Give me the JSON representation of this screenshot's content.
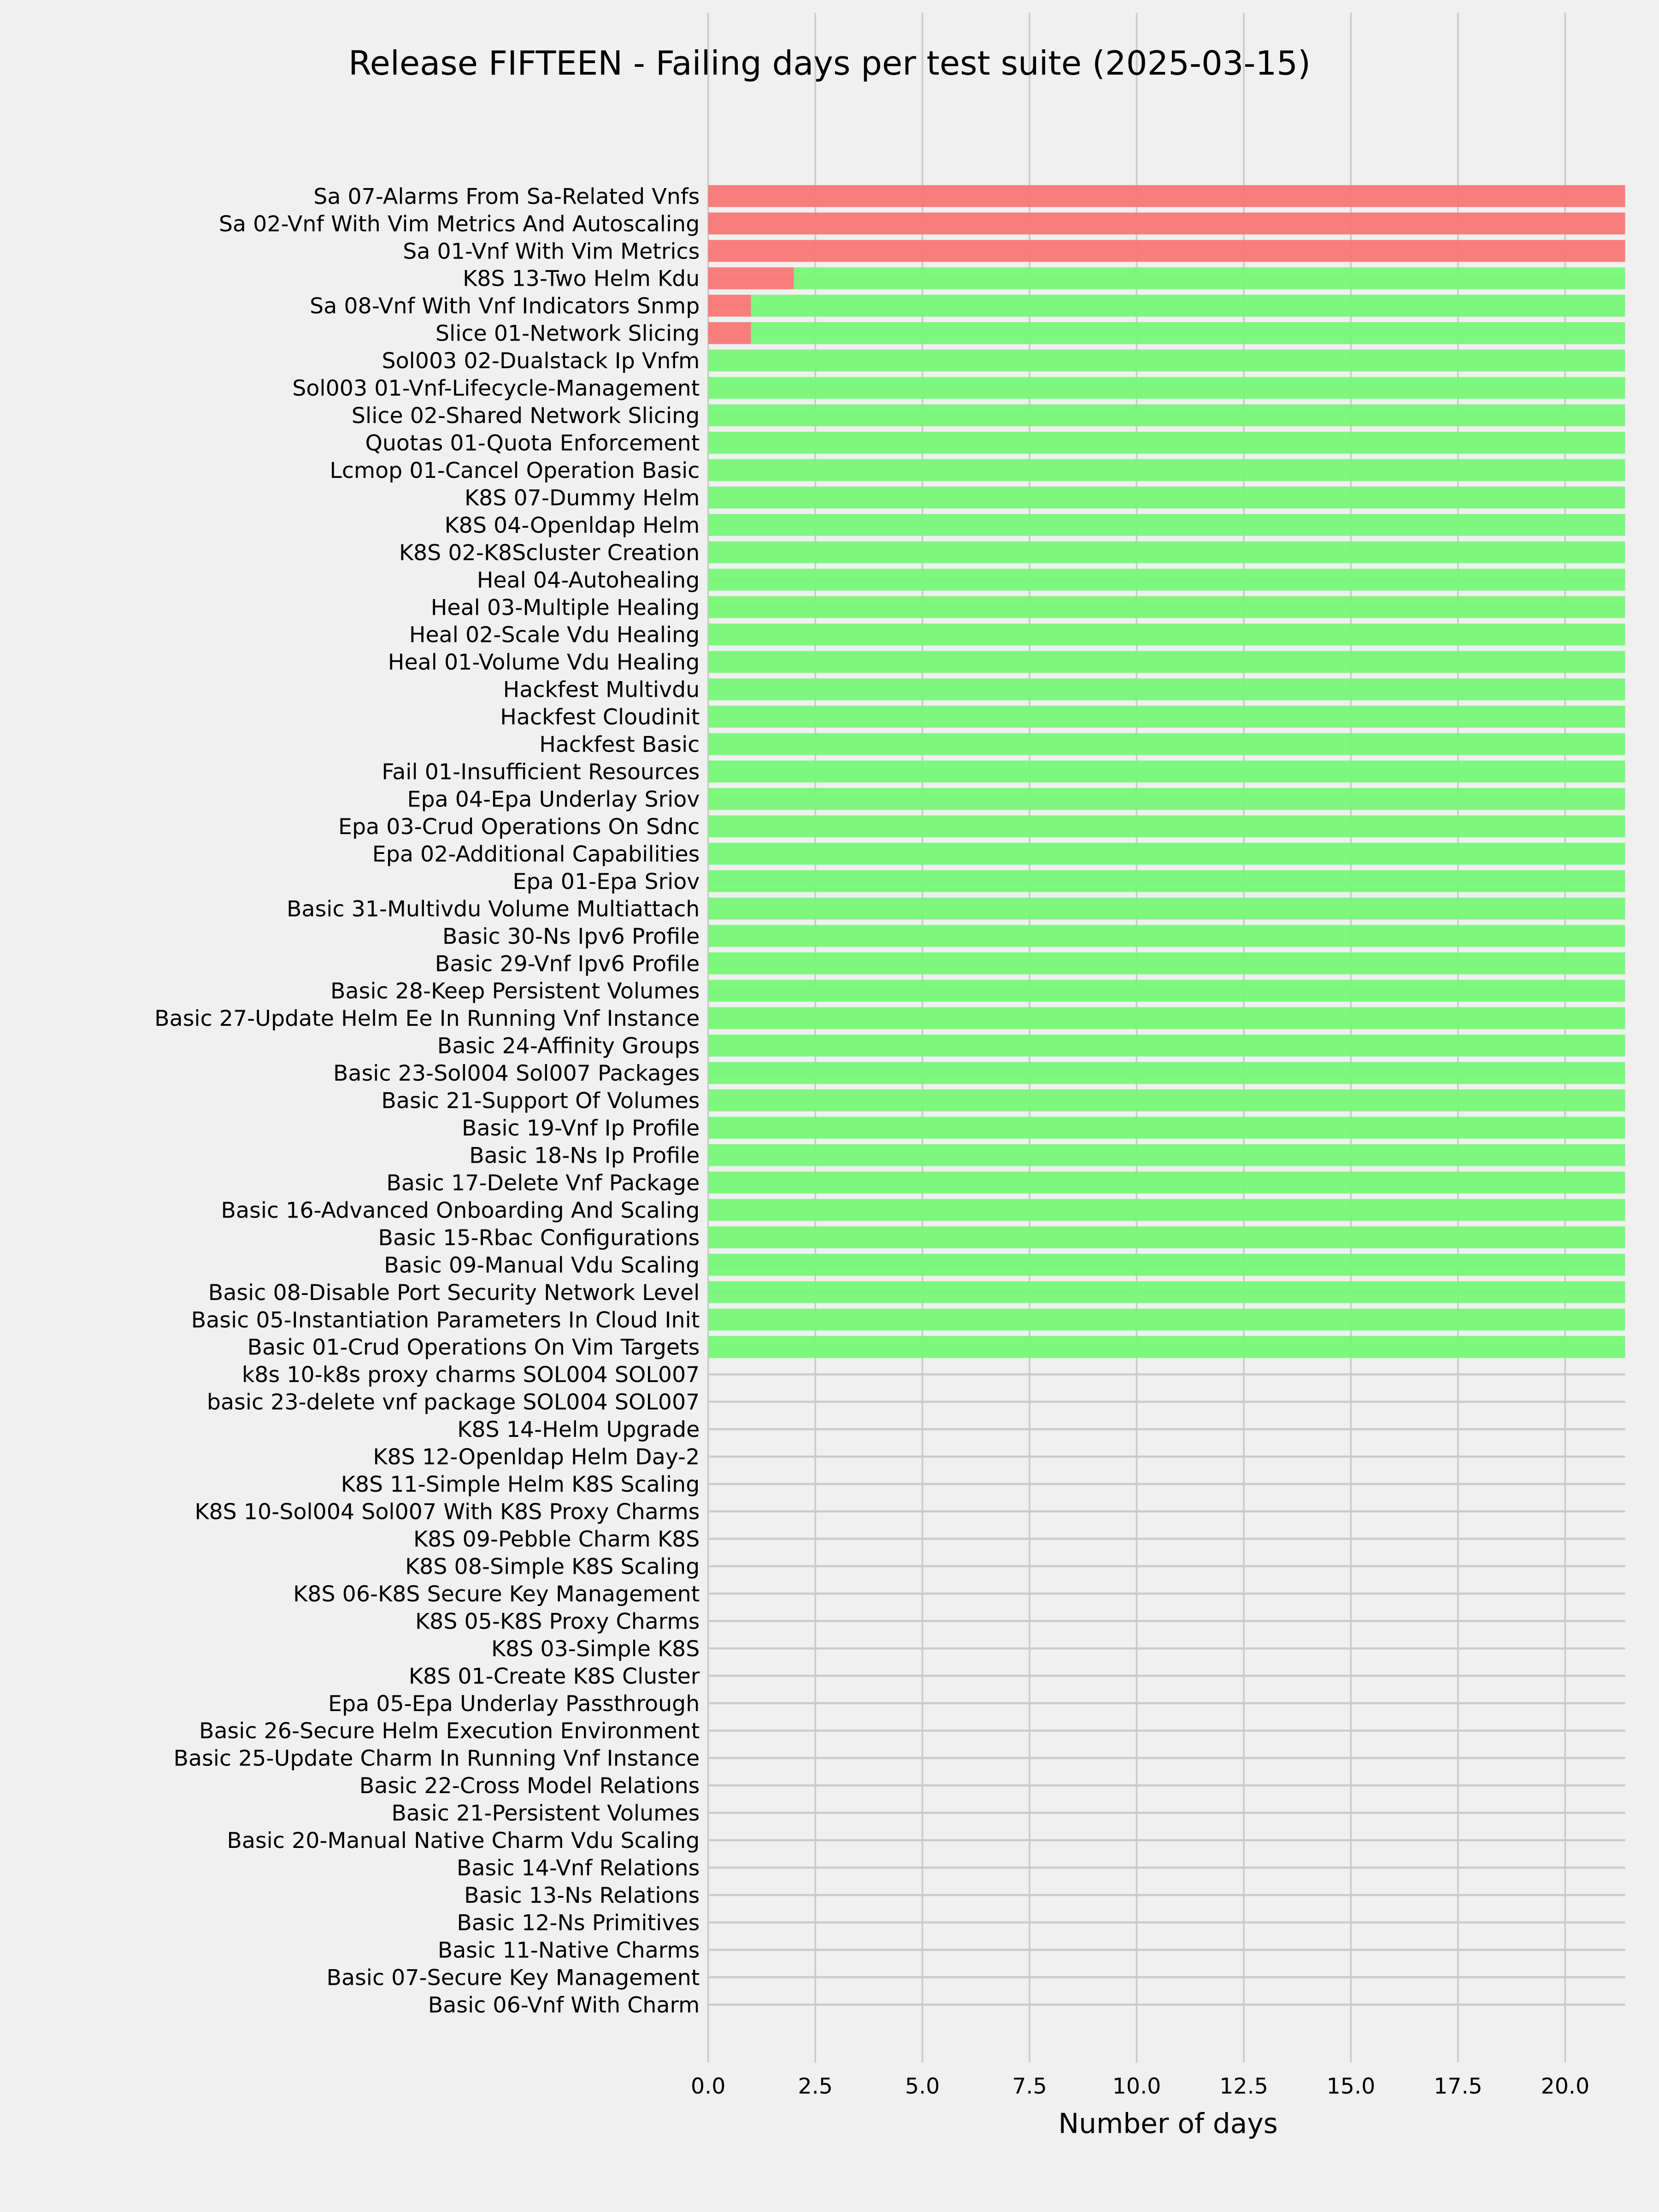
{
  "chart_data": {
    "type": "bar",
    "orientation": "horizontal",
    "stacked": true,
    "title": "Release FIFTEEN - Failing days per test suite (2025-03-15)",
    "xlabel": "Number of days",
    "ylabel": "",
    "xlim": [
      0,
      21.4
    ],
    "xticks": [
      "0.0",
      "2.5",
      "5.0",
      "7.5",
      "10.0",
      "12.5",
      "15.0",
      "17.5",
      "20.0"
    ],
    "grid": true,
    "legend": "none",
    "colors": {
      "failing": "#f87777",
      "passing": "#77f777",
      "grid": "#cbcbcb",
      "background": "#f0f0f0"
    },
    "categories": [
      "Sa 07-Alarms From Sa-Related Vnfs",
      "Sa 02-Vnf With Vim Metrics And Autoscaling",
      "Sa 01-Vnf With Vim Metrics",
      "K8S 13-Two Helm Kdu",
      "Sa 08-Vnf With Vnf Indicators Snmp",
      "Slice 01-Network Slicing",
      "Sol003 02-Dualstack Ip Vnfm",
      "Sol003 01-Vnf-Lifecycle-Management",
      "Slice 02-Shared Network Slicing",
      "Quotas 01-Quota Enforcement",
      "Lcmop 01-Cancel Operation Basic",
      "K8S 07-Dummy Helm",
      "K8S 04-Openldap Helm",
      "K8S 02-K8Scluster Creation",
      "Heal 04-Autohealing",
      "Heal 03-Multiple Healing",
      "Heal 02-Scale Vdu Healing",
      "Heal 01-Volume Vdu Healing",
      "Hackfest Multivdu",
      "Hackfest Cloudinit",
      "Hackfest Basic",
      "Fail 01-Insufficient Resources",
      "Epa 04-Epa Underlay Sriov",
      "Epa 03-Crud Operations On Sdnc",
      "Epa 02-Additional Capabilities",
      "Epa 01-Epa Sriov",
      "Basic 31-Multivdu Volume Multiattach",
      "Basic 30-Ns Ipv6 Profile",
      "Basic 29-Vnf Ipv6 Profile",
      "Basic 28-Keep Persistent Volumes",
      "Basic 27-Update Helm Ee In Running Vnf Instance",
      "Basic 24-Affinity Groups",
      "Basic 23-Sol004 Sol007 Packages",
      "Basic 21-Support Of Volumes",
      "Basic 19-Vnf Ip Profile",
      "Basic 18-Ns Ip Profile",
      "Basic 17-Delete Vnf Package",
      "Basic 16-Advanced Onboarding And Scaling",
      "Basic 15-Rbac Configurations",
      "Basic 09-Manual Vdu Scaling",
      "Basic 08-Disable Port Security Network Level",
      "Basic 05-Instantiation Parameters In Cloud Init",
      "Basic 01-Crud Operations On Vim Targets",
      "k8s 10-k8s proxy charms SOL004 SOL007",
      "basic 23-delete vnf package SOL004 SOL007",
      "K8S 14-Helm Upgrade",
      "K8S 12-Openldap Helm Day-2",
      "K8S 11-Simple Helm K8S Scaling",
      "K8S 10-Sol004 Sol007 With K8S Proxy Charms",
      "K8S 09-Pebble Charm K8S",
      "K8S 08-Simple K8S Scaling",
      "K8S 06-K8S Secure Key Management",
      "K8S 05-K8S Proxy Charms",
      "K8S 03-Simple K8S",
      "K8S 01-Create K8S Cluster",
      "Epa 05-Epa Underlay Passthrough",
      "Basic 26-Secure Helm Execution Environment",
      "Basic 25-Update Charm In Running Vnf Instance",
      "Basic 22-Cross Model Relations",
      "Basic 21-Persistent Volumes",
      "Basic 20-Manual Native Charm Vdu Scaling",
      "Basic 14-Vnf Relations",
      "Basic 13-Ns Relations",
      "Basic 12-Ns Primitives",
      "Basic 11-Native Charms",
      "Basic 07-Secure Key Management",
      "Basic 06-Vnf With Charm"
    ],
    "series": [
      {
        "values": [
          21.4,
          21.4,
          21.4,
          2,
          1,
          1,
          0,
          0,
          0,
          0,
          0,
          0,
          0,
          0,
          0,
          0,
          0,
          0,
          0,
          0,
          0,
          0,
          0,
          0,
          0,
          0,
          0,
          0,
          0,
          0,
          0,
          0,
          0,
          0,
          0,
          0,
          0,
          0,
          0,
          0,
          0,
          0,
          0,
          0,
          0,
          0,
          0,
          0,
          0,
          0,
          0,
          0,
          0,
          0,
          0,
          0,
          0,
          0,
          0,
          0,
          0,
          0,
          0,
          0,
          0,
          0,
          0
        ]
      },
      {
        "values": [
          0,
          0,
          0,
          19.4,
          20.4,
          20.4,
          21.4,
          21.4,
          21.4,
          21.4,
          21.4,
          21.4,
          21.4,
          21.4,
          21.4,
          21.4,
          21.4,
          21.4,
          21.4,
          21.4,
          21.4,
          21.4,
          21.4,
          21.4,
          21.4,
          21.4,
          21.4,
          21.4,
          21.4,
          21.4,
          21.4,
          21.4,
          21.4,
          21.4,
          21.4,
          21.4,
          21.4,
          21.4,
          21.4,
          21.4,
          21.4,
          21.4,
          21.4,
          0,
          0,
          0,
          0,
          0,
          0,
          0,
          0,
          0,
          0,
          0,
          0,
          0,
          0,
          0,
          0,
          0,
          0,
          0,
          0,
          0,
          0,
          0,
          0
        ]
      }
    ]
  }
}
